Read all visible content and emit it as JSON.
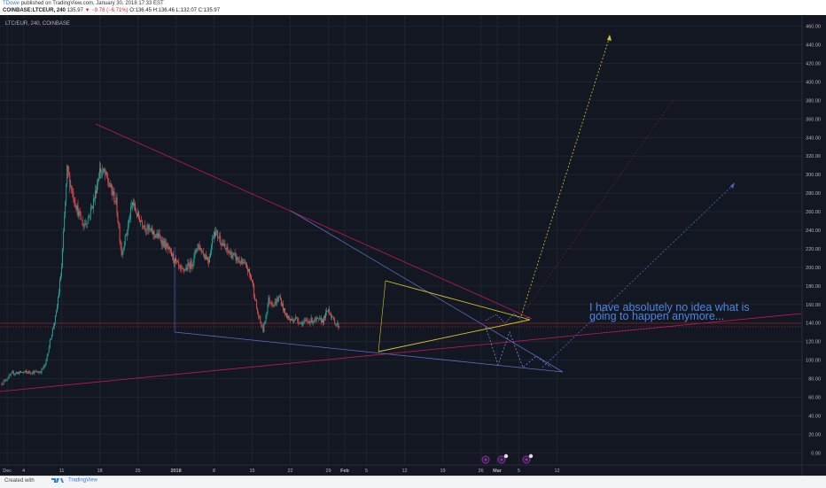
{
  "header": {
    "user": "TDowe",
    "published": "published on TradingView.com, January 30, 2018 17:33 EST",
    "symbol": "COINBASE:LTCEUR, 240",
    "last": "135.97",
    "change": "−9.78 (−6.71%)",
    "ohlc": "O:136.45 H:136.46 L:132.07 C:135.97"
  },
  "legend_label": "LTC/EUR, 240, COINBASE",
  "annotation": {
    "line1": "I have absolutely no idea what is",
    "line2": "going to happen anymore..."
  },
  "price_tag": {
    "value": "135.97",
    "countdown": "01:26:40"
  },
  "footer": {
    "created": "Created with",
    "brand": "TradingView"
  },
  "colors": {
    "background": "#131722",
    "grid": "#1e2330",
    "axis_text": "#b2b5be",
    "up": "#26a69a",
    "down": "#ef5350",
    "wedge_red": "#c2185b",
    "blue_line": "#5c6bc0",
    "yellow_line": "#d4c629",
    "annotation": "#4a86e0",
    "price_tag": "#e53935"
  },
  "chart_data": {
    "type": "candlestick",
    "symbol": "LTC/EUR",
    "interval": "240",
    "exchange": "COINBASE",
    "x_tick_labels": [
      "Dec",
      "4",
      "11",
      "18",
      "25",
      "2018",
      "8",
      "15",
      "22",
      "29",
      "Feb",
      "5",
      "12",
      "19",
      "26",
      "Mar",
      "5",
      "12"
    ],
    "y_tick_labels": [
      "0.00",
      "20.00",
      "40.00",
      "60.00",
      "80.00",
      "100.00",
      "120.00",
      "140.00",
      "160.00",
      "180.00",
      "200.00",
      "220.00",
      "240.00",
      "260.00",
      "280.00",
      "300.00",
      "320.00",
      "340.00",
      "360.00",
      "380.00",
      "400.00",
      "420.00",
      "440.00",
      "460.00"
    ],
    "ylim": [
      -13,
      472
    ],
    "price_path": [
      {
        "date": "2017-11-30",
        "price": 75
      },
      {
        "date": "2017-12-02",
        "price": 86
      },
      {
        "date": "2017-12-04",
        "price": 87
      },
      {
        "date": "2017-12-07",
        "price": 87
      },
      {
        "date": "2017-12-08",
        "price": 95
      },
      {
        "date": "2017-12-09",
        "price": 125
      },
      {
        "date": "2017-12-10",
        "price": 150
      },
      {
        "date": "2017-12-11",
        "price": 200
      },
      {
        "date": "2017-12-12",
        "price": 305
      },
      {
        "date": "2017-12-13",
        "price": 280
      },
      {
        "date": "2017-12-14",
        "price": 260
      },
      {
        "date": "2017-12-15",
        "price": 245
      },
      {
        "date": "2017-12-16",
        "price": 255
      },
      {
        "date": "2017-12-17",
        "price": 275
      },
      {
        "date": "2017-12-18",
        "price": 305
      },
      {
        "date": "2017-12-19",
        "price": 300
      },
      {
        "date": "2017-12-20",
        "price": 285
      },
      {
        "date": "2017-12-21",
        "price": 270
      },
      {
        "date": "2017-12-22",
        "price": 215
      },
      {
        "date": "2017-12-23",
        "price": 240
      },
      {
        "date": "2017-12-24",
        "price": 270
      },
      {
        "date": "2017-12-25",
        "price": 255
      },
      {
        "date": "2017-12-27",
        "price": 240
      },
      {
        "date": "2017-12-29",
        "price": 232
      },
      {
        "date": "2017-12-31",
        "price": 215
      },
      {
        "date": "2018-01-02",
        "price": 195
      },
      {
        "date": "2018-01-04",
        "price": 205
      },
      {
        "date": "2018-01-05",
        "price": 225
      },
      {
        "date": "2018-01-06",
        "price": 215
      },
      {
        "date": "2018-01-07",
        "price": 208
      },
      {
        "date": "2018-01-08",
        "price": 240
      },
      {
        "date": "2018-01-09",
        "price": 232
      },
      {
        "date": "2018-01-10",
        "price": 220
      },
      {
        "date": "2018-01-12",
        "price": 210
      },
      {
        "date": "2018-01-14",
        "price": 200
      },
      {
        "date": "2018-01-15",
        "price": 185
      },
      {
        "date": "2018-01-16",
        "price": 150
      },
      {
        "date": "2018-01-17",
        "price": 132
      },
      {
        "date": "2018-01-18",
        "price": 165
      },
      {
        "date": "2018-01-19",
        "price": 160
      },
      {
        "date": "2018-01-20",
        "price": 168
      },
      {
        "date": "2018-01-21",
        "price": 150
      },
      {
        "date": "2018-01-22",
        "price": 143
      },
      {
        "date": "2018-01-23",
        "price": 145
      },
      {
        "date": "2018-01-24",
        "price": 140
      },
      {
        "date": "2018-01-26",
        "price": 143
      },
      {
        "date": "2018-01-28",
        "price": 143
      },
      {
        "date": "2018-01-29",
        "price": 155
      },
      {
        "date": "2018-01-30",
        "price": 142
      },
      {
        "date": "2018-01-31",
        "price": 136
      }
    ],
    "last_price": 135.97
  }
}
